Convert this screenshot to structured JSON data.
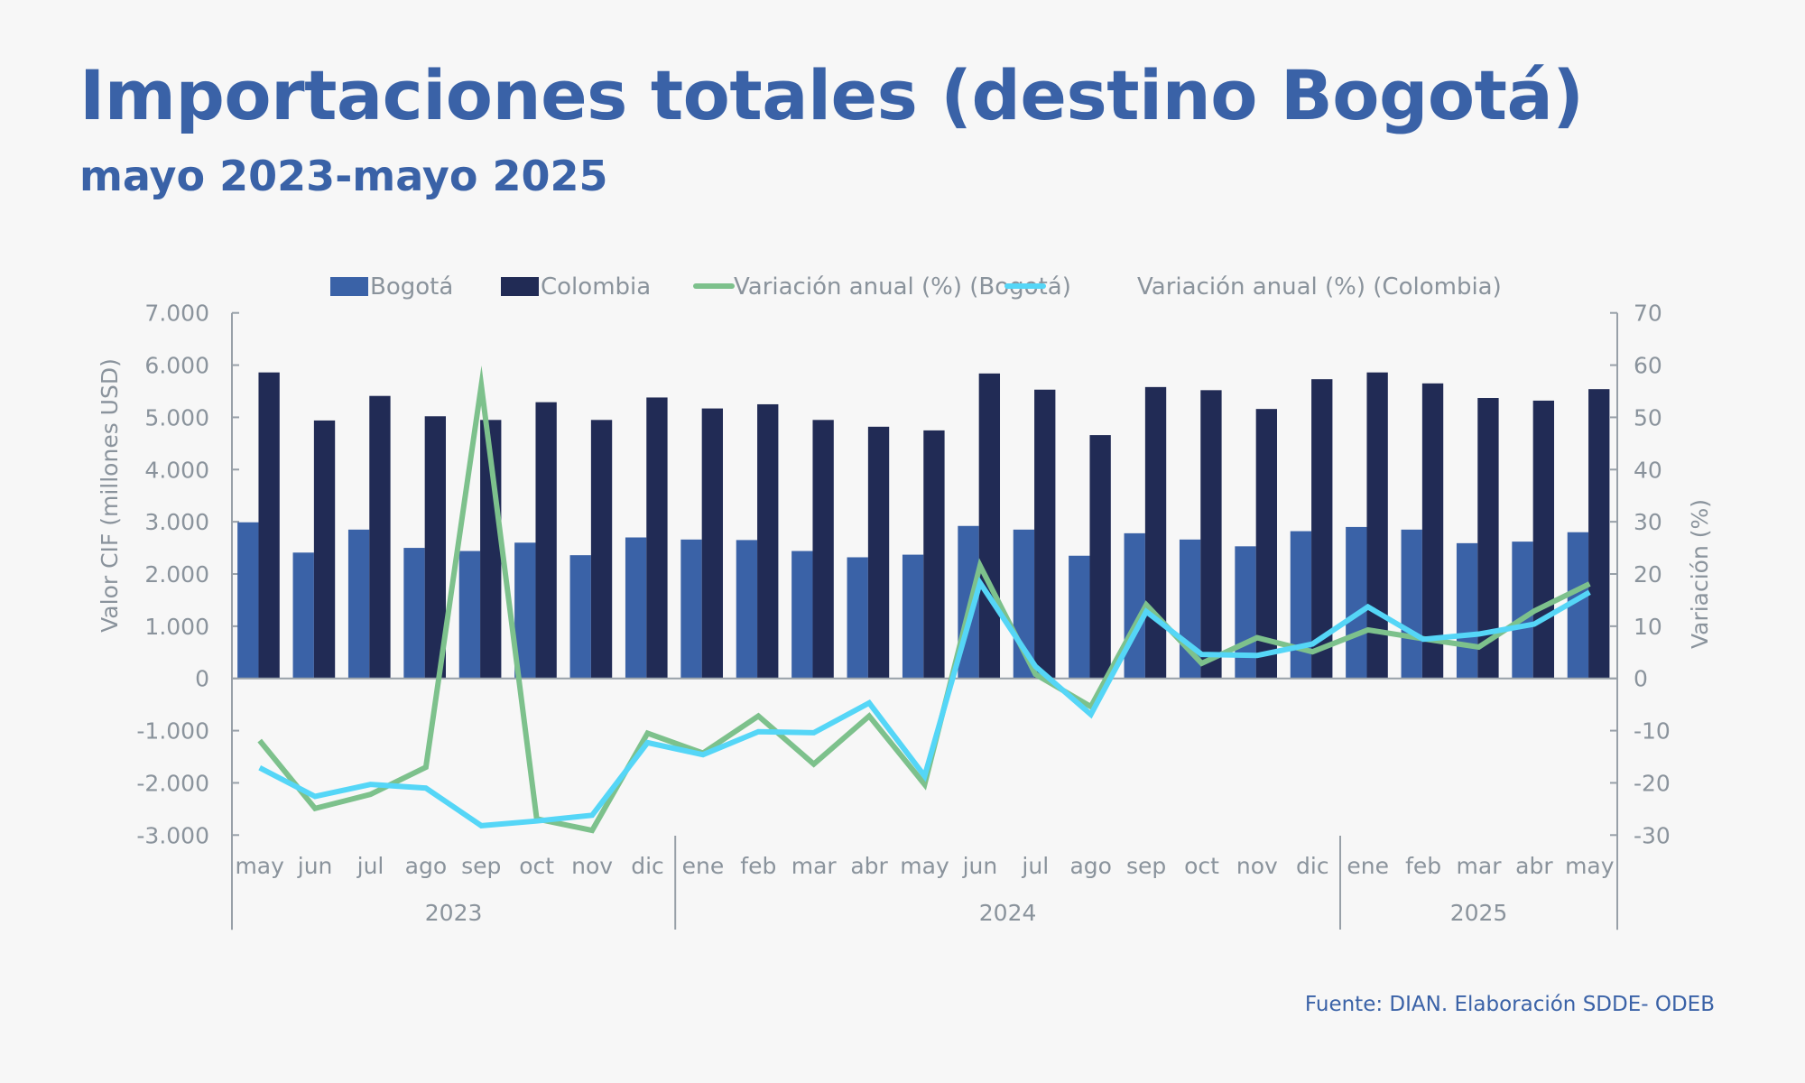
{
  "header": {
    "title": "Importaciones totales (destino Bogotá)",
    "subtitle": "mayo 2023-mayo 2025"
  },
  "footer": {
    "source": "Fuente: DIAN. Elaboración SDDE- ODEB"
  },
  "colors": {
    "bogota_bar": "#3a62a7",
    "colombia_bar": "#212b55",
    "bogota_line": "#7dc18c",
    "colombia_line": "#55d6f7",
    "axis": "#98a0a8",
    "text": "#8a939c"
  },
  "chart_data": {
    "type": "bar+line",
    "title": "Importaciones totales (destino Bogotá)",
    "subtitle": "mayo 2023-mayo 2025",
    "categories": [
      "may",
      "jun",
      "jul",
      "ago",
      "sep",
      "oct",
      "nov",
      "dic",
      "ene",
      "feb",
      "mar",
      "abr",
      "may",
      "jun",
      "jul",
      "ago",
      "sep",
      "oct",
      "nov",
      "dic",
      "ene",
      "feb",
      "mar",
      "abr",
      "may"
    ],
    "year_groups": [
      {
        "label": "2023",
        "start": 0,
        "end": 7
      },
      {
        "label": "2024",
        "start": 8,
        "end": 19
      },
      {
        "label": "2025",
        "start": 20,
        "end": 24
      }
    ],
    "ylabel": "Valor CIF (millones USD)",
    "y2label": "Variación (%)",
    "ylim": [
      -3000,
      7000
    ],
    "y2lim": [
      -30,
      70
    ],
    "yticks": [
      "7.000",
      "6.000",
      "5.000",
      "4.000",
      "3.000",
      "2.000",
      "1.000",
      "0",
      "-1.000",
      "-2.000",
      "-3.000"
    ],
    "yticks_values": [
      7000,
      6000,
      5000,
      4000,
      3000,
      2000,
      1000,
      0,
      -1000,
      -2000,
      -3000
    ],
    "y2ticks": [
      "70",
      "60",
      "50",
      "40",
      "30",
      "20",
      "10",
      "0",
      "-10",
      "-20",
      "-30"
    ],
    "y2ticks_values": [
      70,
      60,
      50,
      40,
      30,
      20,
      10,
      0,
      -10,
      -20,
      -30
    ],
    "legend_position": "top",
    "grid": false,
    "series": [
      {
        "name": "Bogotá",
        "type": "bar",
        "axis": "left",
        "values": [
          2990,
          2410,
          2850,
          2500,
          2440,
          2600,
          2360,
          2700,
          2660,
          2650,
          2440,
          2320,
          2370,
          2920,
          2850,
          2350,
          2780,
          2660,
          2530,
          2820,
          2900,
          2850,
          2590,
          2620,
          2800
        ]
      },
      {
        "name": "Colombia",
        "type": "bar",
        "axis": "left",
        "values": [
          5860,
          4940,
          5410,
          5020,
          4950,
          5290,
          4950,
          5380,
          5170,
          5250,
          4950,
          4820,
          4750,
          5840,
          5530,
          4660,
          5580,
          5520,
          5160,
          5730,
          5860,
          5650,
          5370,
          5320,
          5540
        ]
      },
      {
        "name": "Variación anual (%) (Bogotá)",
        "type": "line",
        "axis": "right",
        "values": [
          -11.9,
          -24.9,
          -22.2,
          -17.0,
          56.1,
          -26.9,
          -29.1,
          -10.5,
          -14.3,
          -7.2,
          -16.4,
          -7.2,
          -20.3,
          21.6,
          0.8,
          -5.4,
          14.1,
          2.9,
          7.8,
          5.1,
          9.3,
          7.6,
          6.0,
          12.9,
          18.1
        ]
      },
      {
        "name": "Variación anual (%) (Colombia)",
        "type": "line",
        "axis": "right",
        "values": [
          -17.1,
          -22.6,
          -20.3,
          -21.0,
          -28.2,
          -27.3,
          -26.2,
          -12.3,
          -14.6,
          -10.2,
          -10.4,
          -4.7,
          -18.7,
          18.3,
          2.3,
          -6.9,
          12.8,
          4.6,
          4.4,
          6.6,
          13.7,
          7.5,
          8.5,
          10.4,
          16.5
        ]
      }
    ]
  }
}
